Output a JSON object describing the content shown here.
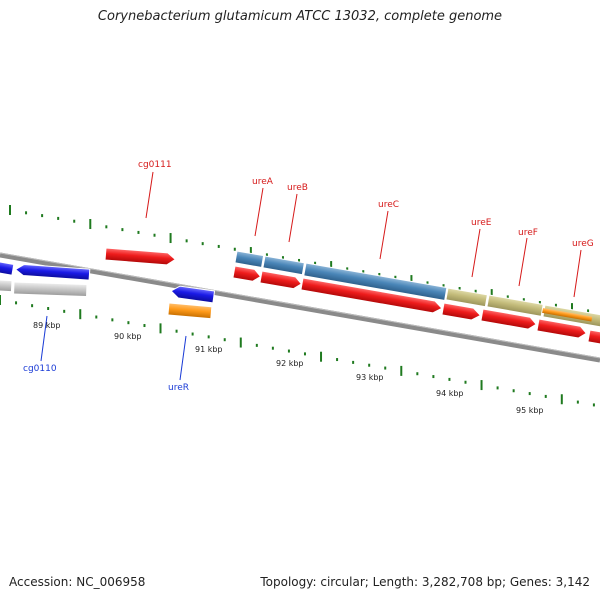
{
  "title": "Corynebacterium glutamicum ATCC 13032, complete genome",
  "accession": "Accession: NC_006958",
  "summary": "Topology: circular; Length: 3,282,708 bp; Genes: 3,142",
  "scale_ticks": [
    {
      "label": "89 kbp",
      "pos": 89
    },
    {
      "label": "90 kbp",
      "pos": 90
    },
    {
      "label": "91 kbp",
      "pos": 91
    },
    {
      "label": "92 kbp",
      "pos": 92
    },
    {
      "label": "93 kbp",
      "pos": 93
    },
    {
      "label": "94 kbp",
      "pos": 94
    },
    {
      "label": "95 kbp",
      "pos": 95
    }
  ],
  "gene_labels": {
    "forward": [
      "cg0111",
      "ureA",
      "ureB",
      "ureC",
      "ureE",
      "ureF",
      "ureG"
    ],
    "reverse": [
      "cg0110",
      "ureR"
    ]
  },
  "colors": {
    "cds_forward": "#ee1c1c",
    "cds_reverse": "#1a1ae6",
    "ure_blue": "#4a86b8",
    "ure_khaki": "#c3bb7a",
    "orange": "#ff9a1a",
    "gray_feature": "#c8c8c8",
    "backbone": "#808080",
    "tick": "#1f7a1f",
    "label_fwd": "#d61a1a",
    "label_rev": "#1a3bd6"
  }
}
